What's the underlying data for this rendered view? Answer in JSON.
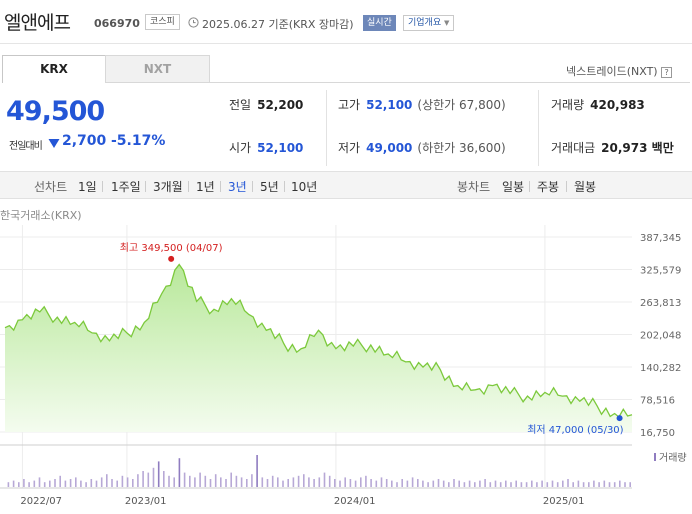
{
  "header": {
    "company": "엘앤에프",
    "code": "066970",
    "market": "코스피",
    "date_text": "2025.06.27 기준(KRX 장마감)",
    "realtime": "실시간",
    "overview": "기업개요"
  },
  "tabs": [
    {
      "label": "KRX",
      "active": true
    },
    {
      "label": "NXT",
      "active": false
    }
  ],
  "nextrade": "넥스트레이드(NXT)",
  "quote": {
    "price": "49,500",
    "prev_label": "전일대비",
    "change": "2,700",
    "change_pct": "-5.17%"
  },
  "stats": {
    "prev_close": {
      "label": "전일",
      "value": "52,200"
    },
    "open": {
      "label": "시가",
      "value": "52,100"
    },
    "high": {
      "label": "고가",
      "value": "52,100",
      "sub": "(상한가 67,800)"
    },
    "low": {
      "label": "저가",
      "value": "49,000",
      "sub": "(하한가 36,600)"
    },
    "volume": {
      "label": "거래량",
      "value": "420,983"
    },
    "amount": {
      "label": "거래대금",
      "value": "20,973 백만"
    }
  },
  "toolbar": {
    "line_label": "선차트",
    "periods": [
      "1일",
      "1주일",
      "3개월",
      "1년",
      "3년",
      "5년",
      "10년"
    ],
    "active_period": "3년",
    "candle_label": "봉차트",
    "candles": [
      "일봉",
      "주봉",
      "월봉"
    ]
  },
  "colors": {
    "down": "#2456d6",
    "up": "#d42020",
    "line": "#7cc93c",
    "area": "#d9f3c6",
    "volume": "#b7a8d6",
    "volume_peak": "#8f7cc0"
  },
  "chart_data": {
    "type": "area",
    "source": "한국거래소(KRX)",
    "y_ticks": [
      "387,345",
      "325,579",
      "263,813",
      "202,048",
      "140,282",
      "78,516",
      "16,750"
    ],
    "ylim": [
      16750,
      387345
    ],
    "x_ticks": [
      {
        "label": "2022/07",
        "x": "2022-07"
      },
      {
        "label": "2023/01",
        "x": "2023-01"
      },
      {
        "label": "2024/01",
        "x": "2024-01"
      },
      {
        "label": "2025/01",
        "x": "2025-01"
      }
    ],
    "high": {
      "label": "최고 349,500 (04/07)",
      "value": 349500,
      "x": "2023-04"
    },
    "low": {
      "label": "최저 47,000 (05/30)",
      "value": 47000,
      "x": "2025-05"
    },
    "volume_label": "거래량",
    "series": [
      {
        "x": "2022-06",
        "y": 215000
      },
      {
        "x": "2022-07",
        "y": 230000
      },
      {
        "x": "2022-08",
        "y": 245000
      },
      {
        "x": "2022-09",
        "y": 235000
      },
      {
        "x": "2022-10",
        "y": 225000
      },
      {
        "x": "2022-11",
        "y": 205000
      },
      {
        "x": "2022-12",
        "y": 190000
      },
      {
        "x": "2023-01",
        "y": 205000
      },
      {
        "x": "2023-02",
        "y": 225000
      },
      {
        "x": "2023-03",
        "y": 280000
      },
      {
        "x": "2023-04",
        "y": 335000
      },
      {
        "x": "2023-05",
        "y": 265000
      },
      {
        "x": "2023-06",
        "y": 250000
      },
      {
        "x": "2023-07",
        "y": 270000
      },
      {
        "x": "2023-08",
        "y": 240000
      },
      {
        "x": "2023-09",
        "y": 210000
      },
      {
        "x": "2023-10",
        "y": 185000
      },
      {
        "x": "2023-11",
        "y": 175000
      },
      {
        "x": "2023-12",
        "y": 210000
      },
      {
        "x": "2024-01",
        "y": 175000
      },
      {
        "x": "2024-02",
        "y": 180000
      },
      {
        "x": "2024-03",
        "y": 182000
      },
      {
        "x": "2024-04",
        "y": 165000
      },
      {
        "x": "2024-05",
        "y": 150000
      },
      {
        "x": "2024-06",
        "y": 140000
      },
      {
        "x": "2024-07",
        "y": 135000
      },
      {
        "x": "2024-08",
        "y": 105000
      },
      {
        "x": "2024-09",
        "y": 97000
      },
      {
        "x": "2024-10",
        "y": 105000
      },
      {
        "x": "2024-11",
        "y": 90000
      },
      {
        "x": "2024-12",
        "y": 85000
      },
      {
        "x": "2025-01",
        "y": 92000
      },
      {
        "x": "2025-02",
        "y": 85000
      },
      {
        "x": "2025-03",
        "y": 75000
      },
      {
        "x": "2025-04",
        "y": 66000
      },
      {
        "x": "2025-05",
        "y": 52000
      },
      {
        "x": "2025-06",
        "y": 49500
      }
    ],
    "volume": [
      3,
      4,
      3,
      5,
      3,
      4,
      6,
      3,
      4,
      5,
      7,
      4,
      5,
      6,
      4,
      3,
      5,
      4,
      6,
      8,
      5,
      4,
      7,
      6,
      5,
      8,
      10,
      9,
      12,
      16,
      10,
      7,
      6,
      18,
      9,
      7,
      6,
      9,
      7,
      5,
      8,
      6,
      5,
      9,
      7,
      6,
      5,
      8,
      20,
      6,
      5,
      7,
      6,
      4,
      5,
      6,
      7,
      8,
      6,
      5,
      6,
      9,
      7,
      5,
      4,
      6,
      5,
      4,
      6,
      7,
      5,
      4,
      6,
      5,
      4,
      3,
      5,
      4,
      6,
      5,
      4,
      3,
      4,
      5,
      4,
      3,
      5,
      4,
      3,
      4,
      3,
      4,
      5,
      3,
      4,
      3,
      4,
      3,
      4,
      3,
      3,
      4,
      3,
      4,
      3,
      4,
      3,
      4,
      5,
      3,
      4,
      3,
      3,
      4,
      3,
      4,
      3,
      3,
      4,
      3,
      3
    ]
  }
}
